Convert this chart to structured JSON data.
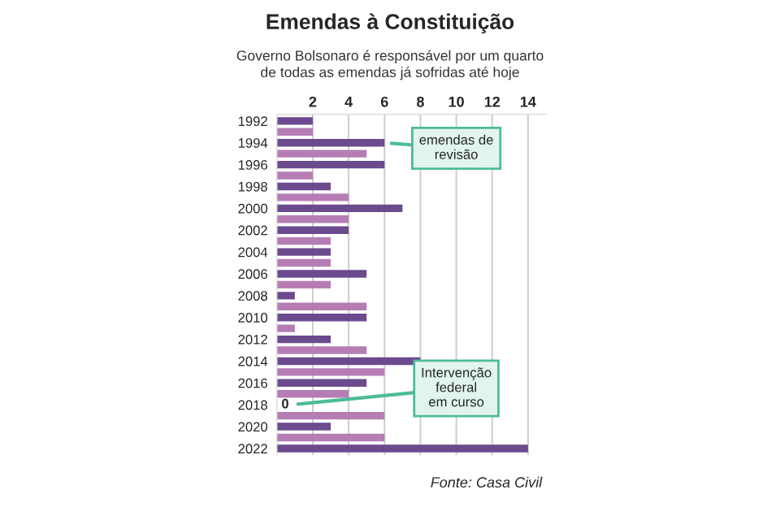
{
  "chart_data": {
    "type": "bar",
    "orientation": "horizontal",
    "title": "Emendas à Constituição",
    "subtitle": "Governo Bolsonaro é responsável por um quarto\nde todas as emendas já sofridas até hoje",
    "categories": [
      "1992",
      null,
      "1994",
      null,
      "1996",
      null,
      "1998",
      null,
      "2000",
      null,
      "2002",
      null,
      "2004",
      null,
      "2006",
      null,
      "2008",
      null,
      "2010",
      null,
      "2012",
      null,
      "2014",
      null,
      "2016",
      null,
      "2018",
      null,
      "2020",
      null,
      "2022"
    ],
    "values": [
      2,
      2,
      6,
      5,
      6,
      2,
      3,
      4,
      7,
      4,
      4,
      3,
      3,
      3,
      5,
      3,
      1,
      5,
      5,
      1,
      3,
      5,
      8,
      6,
      5,
      4,
      0,
      6,
      3,
      6,
      14
    ],
    "colors": [
      "#6b4a8e",
      "#b57db4",
      "#6b4a8e",
      "#b57db4",
      "#6b4a8e",
      "#b57db4",
      "#6b4a8e",
      "#b57db4",
      "#6b4a8e",
      "#b57db4",
      "#6b4a8e",
      "#b57db4",
      "#6b4a8e",
      "#b57db4",
      "#6b4a8e",
      "#b57db4",
      "#6b4a8e",
      "#b57db4",
      "#6b4a8e",
      "#b57db4",
      "#6b4a8e",
      "#b57db4",
      "#6b4a8e",
      "#b57db4",
      "#6b4a8e",
      "#b57db4",
      "#6b4a8e",
      "#b57db4",
      "#6b4a8e",
      "#b57db4",
      "#6b4a8e"
    ],
    "value_labels": [
      null,
      null,
      null,
      null,
      null,
      null,
      null,
      null,
      null,
      null,
      null,
      null,
      null,
      null,
      null,
      null,
      null,
      null,
      null,
      null,
      null,
      null,
      null,
      null,
      null,
      null,
      "0",
      null,
      null,
      null,
      null
    ],
    "xlim": [
      0,
      15
    ],
    "xticks": [
      2,
      4,
      6,
      8,
      10,
      12,
      14
    ],
    "grid": "x",
    "annotations": [
      {
        "text": "emendas de\nrevisão",
        "x": 6,
        "y": "1994"
      },
      {
        "text": "Intervenção\nfederal\nem curso",
        "x": 0.8,
        "y": "2018"
      },
      "Fonte: Casa Civil"
    ]
  }
}
